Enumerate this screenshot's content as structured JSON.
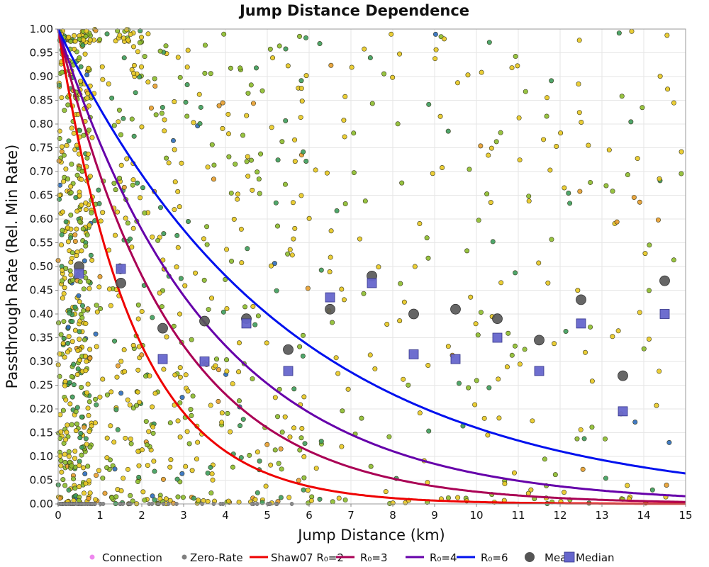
{
  "chart_data": {
    "type": "scatter",
    "title": "Jump Distance Dependence",
    "xlabel": "Jump Distance (km)",
    "ylabel": "Passthrough Rate (Rel. Min Rate)",
    "xlim": [
      0,
      15
    ],
    "ylim": [
      0,
      1
    ],
    "x_ticks": [
      "0",
      "1",
      "2",
      "3",
      "4",
      "5",
      "6",
      "7",
      "8",
      "9",
      "10",
      "11",
      "12",
      "13",
      "14",
      "15"
    ],
    "y_ticks": [
      "0.00",
      "0.05",
      "0.10",
      "0.15",
      "0.20",
      "0.25",
      "0.30",
      "0.35",
      "0.40",
      "0.45",
      "0.50",
      "0.55",
      "0.60",
      "0.65",
      "0.70",
      "0.75",
      "0.80",
      "0.85",
      "0.90",
      "0.95",
      "1.00"
    ],
    "grid": true,
    "legend_position": "bottom",
    "legend": [
      {
        "key": "connection",
        "label": "Connection",
        "color": "#ee88ee",
        "marker": "circle-small"
      },
      {
        "key": "zero_rate",
        "label": "Zero-Rate",
        "color": "#808080",
        "marker": "circle-small"
      },
      {
        "key": "r2",
        "label": "Shaw07 R₀=2",
        "color": "#ee0000",
        "marker": "line"
      },
      {
        "key": "r3",
        "label": "R₀=3",
        "color": "#aa0055",
        "marker": "line"
      },
      {
        "key": "r4",
        "label": "R₀=4",
        "color": "#6600aa",
        "marker": "line"
      },
      {
        "key": "r6",
        "label": "R₀=6",
        "color": "#0011ee",
        "marker": "line"
      },
      {
        "key": "mean",
        "label": "Mean",
        "color": "#555555",
        "marker": "circle-large"
      },
      {
        "key": "median",
        "label": "Median",
        "color": "#6666cc",
        "marker": "square"
      }
    ],
    "curves": [
      {
        "name": "Shaw07 R₀=2",
        "R0": 2,
        "color": "#ee0000"
      },
      {
        "name": "R₀=3",
        "R0": 3,
        "color": "#aa0055"
      },
      {
        "name": "R₀=4",
        "R0": 4,
        "color": "#6600aa"
      },
      {
        "name": "R₀=6",
        "R0": 6,
        "color": "#0011ee"
      }
    ],
    "mean": {
      "x": [
        0.5,
        1.5,
        2.5,
        3.5,
        4.5,
        5.5,
        6.5,
        7.5,
        8.5,
        9.5,
        10.5,
        11.5,
        12.5,
        13.5,
        14.5
      ],
      "y": [
        0.5,
        0.465,
        0.37,
        0.385,
        0.39,
        0.325,
        0.41,
        0.48,
        0.4,
        0.41,
        0.39,
        0.345,
        0.43,
        0.27,
        0.47
      ]
    },
    "median": {
      "x": [
        0.5,
        1.5,
        2.5,
        3.5,
        4.5,
        5.5,
        6.5,
        7.5,
        8.5,
        9.5,
        10.5,
        11.5,
        12.5,
        13.5,
        14.5
      ],
      "y": [
        0.485,
        0.495,
        0.305,
        0.3,
        0.38,
        0.28,
        0.435,
        0.465,
        0.315,
        0.305,
        0.35,
        0.28,
        0.38,
        0.195,
        0.4
      ]
    },
    "connection_point_colors": [
      "#e8c820",
      "#8cbc2c",
      "#3c9c5c",
      "#e89c2c",
      "#2c6cbc"
    ]
  }
}
